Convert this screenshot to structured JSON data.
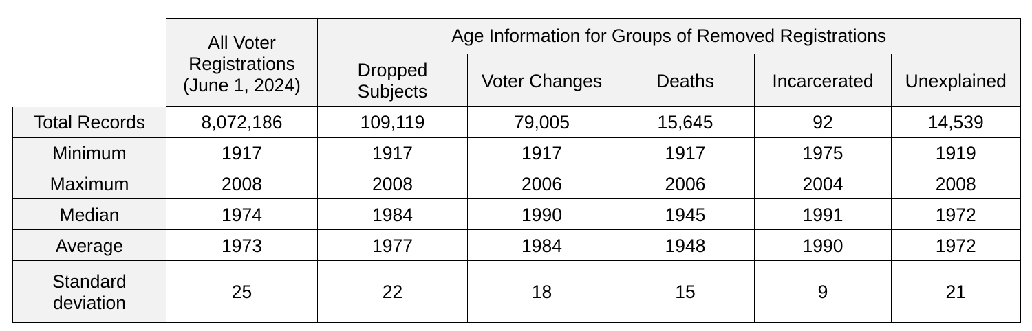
{
  "page": {
    "background_color": "#ffffff",
    "table_border_color": "#000000",
    "header_fill_color": "#f2f2f2",
    "data_fill_color": "#ffffff",
    "text_color": "#000000"
  },
  "chart_data": {
    "type": "table",
    "span_header": "Age Information for Groups of Removed Registrations",
    "column_headers": [
      "All Voter Registrations (June 1, 2024)",
      "Dropped Subjects",
      "Voter Changes",
      "Deaths",
      "Incarcerated",
      "Unexplained"
    ],
    "row_labels": [
      "Total Records",
      "Minimum",
      "Maximum",
      "Median",
      "Average",
      "Standard deviation"
    ],
    "rows": [
      {
        "label": "Total Records",
        "values": [
          "8,072,186",
          "109,119",
          "79,005",
          "15,645",
          "92",
          "14,539"
        ]
      },
      {
        "label": "Minimum",
        "values": [
          "1917",
          "1917",
          "1917",
          "1917",
          "1975",
          "1919"
        ]
      },
      {
        "label": "Maximum",
        "values": [
          "2008",
          "2008",
          "2006",
          "2006",
          "2004",
          "2008"
        ]
      },
      {
        "label": "Median",
        "values": [
          "1974",
          "1984",
          "1990",
          "1945",
          "1991",
          "1972"
        ]
      },
      {
        "label": "Average",
        "values": [
          "1973",
          "1977",
          "1984",
          "1948",
          "1990",
          "1972"
        ]
      },
      {
        "label": "Standard deviation",
        "values": [
          "25",
          "22",
          "18",
          "15",
          "9",
          "21"
        ]
      }
    ]
  }
}
